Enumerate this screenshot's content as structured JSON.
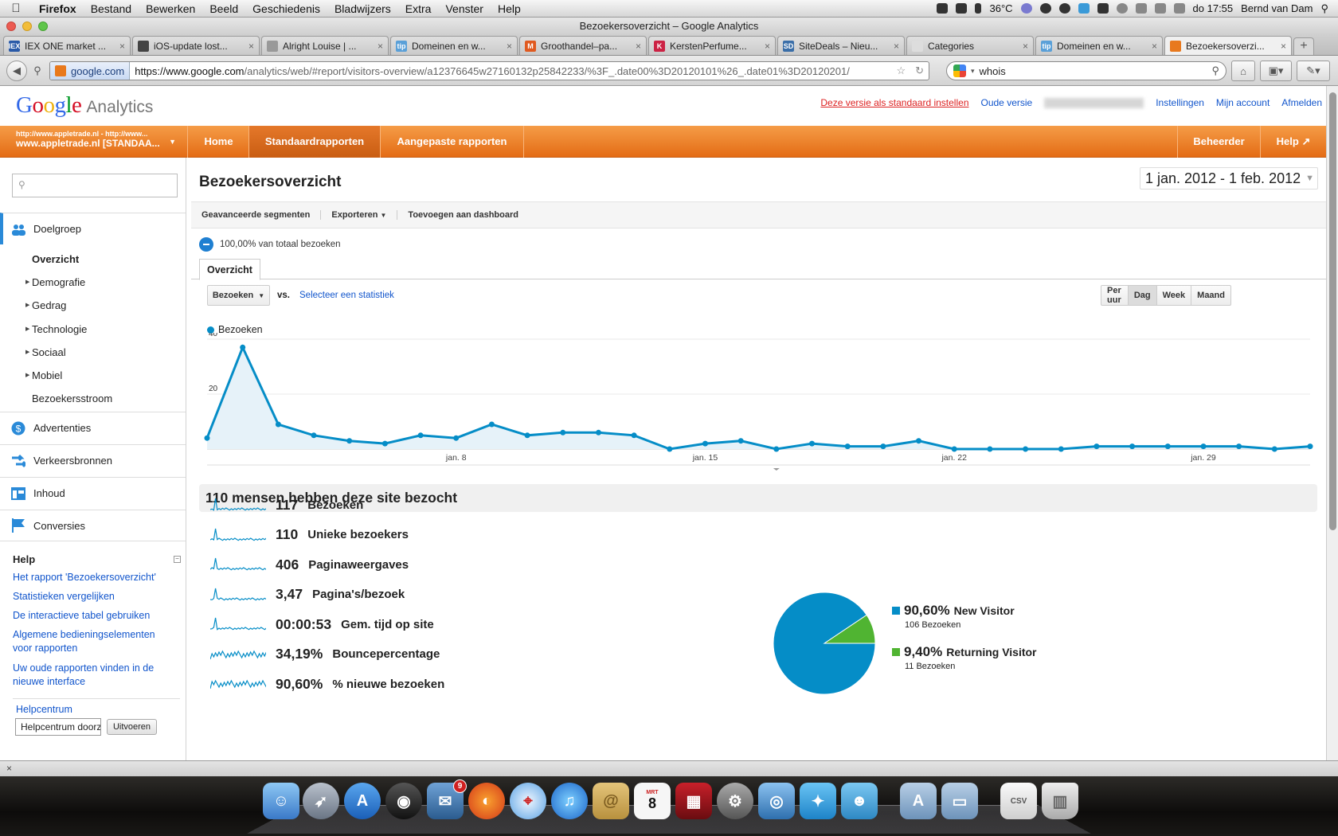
{
  "os_menubar": {
    "app": "Firefox",
    "menus": [
      "Bestand",
      "Bewerken",
      "Beeld",
      "Geschiedenis",
      "Bladwijzers",
      "Extra",
      "Venster",
      "Help"
    ],
    "temperature": "36°C",
    "clock": "do 17:55",
    "user": "Bernd van Dam"
  },
  "window": {
    "title": "Bezoekersoverzicht – Google Analytics"
  },
  "browser_tabs": [
    {
      "title": "IEX ONE market ...",
      "fav_color": "#2a5aa8",
      "fav_text": "IEX"
    },
    {
      "title": "iOS-update lost...",
      "fav_color": "#444444",
      "fav_text": ""
    },
    {
      "title": "Alright Louise | ...",
      "fav_color": "#999999",
      "fav_text": ""
    },
    {
      "title": "Domeinen en w...",
      "fav_color": "#5aa0d8",
      "fav_text": "tip"
    },
    {
      "title": "Groothandel–pa...",
      "fav_color": "#e05a20",
      "fav_text": "M"
    },
    {
      "title": "KerstenPerfume...",
      "fav_color": "#cc2244",
      "fav_text": "K"
    },
    {
      "title": "SiteDeals – Nieu...",
      "fav_color": "#3a6ea8",
      "fav_text": "SD"
    },
    {
      "title": "Categories",
      "fav_color": "#dddddd",
      "fav_text": ""
    },
    {
      "title": "Domeinen en w...",
      "fav_color": "#5aa0d8",
      "fav_text": "tip"
    },
    {
      "title": "Bezoekersoverzi...",
      "fav_color": "#e8791e",
      "fav_text": ""
    }
  ],
  "navbar": {
    "identity": "google.com",
    "url_host": "https://www.google.com",
    "url_path": "/analytics/web/#report/visitors-overview/a12376645w27160132p25842233/%3F_.date00%3D20120101%26_.date01%3D20120201/",
    "search_value": "whois"
  },
  "ga_header": {
    "logo_google": "Google",
    "logo_analytics": "Analytics",
    "links": {
      "set_default": "Deze versie als standaard instellen",
      "old_version": "Oude versie",
      "settings": "Instellingen",
      "my_account": "Mijn account",
      "sign_out": "Afmelden"
    }
  },
  "orange_nav": {
    "profile_url": "http://www.appletrade.nl - http://www...",
    "profile_name": "www.appletrade.nl [STANDAA...",
    "items": [
      "Home",
      "Standaardrapporten",
      "Aangepaste rapporten"
    ],
    "right_items": [
      "Beheerder",
      "Help"
    ]
  },
  "sidebar": {
    "sections": [
      {
        "label": "Doelgroep",
        "icon": "people-icon"
      },
      {
        "label": "Advertenties",
        "icon": "dollar-icon"
      },
      {
        "label": "Verkeersbronnen",
        "icon": "arrows-icon"
      },
      {
        "label": "Inhoud",
        "icon": "content-icon"
      },
      {
        "label": "Conversies",
        "icon": "flag-icon"
      }
    ],
    "subitems": [
      "Overzicht",
      "Demografie",
      "Gedrag",
      "Technologie",
      "Sociaal",
      "Mobiel",
      "Bezoekersstroom"
    ],
    "help_title": "Help",
    "help_links": [
      "Het rapport 'Bezoekersoverzicht'",
      "Statistieken vergelijken",
      "De interactieve tabel gebruiken",
      "Algemene bedieningselementen voor rapporten",
      "Uw oude rapporten vinden in de nieuwe interface"
    ],
    "helpcenter_label": "Helpcentrum",
    "helpcenter_input": "Helpcentrum doorz",
    "helpcenter_button": "Uitvoeren"
  },
  "main": {
    "title": "Bezoekersoverzicht",
    "date_range": "1 jan. 2012 - 1 feb. 2012",
    "toolbar": [
      "Geavanceerde segmenten",
      "Exporteren",
      "Toevoegen aan dashboard"
    ],
    "segment_text": "100,00% van totaal bezoeken",
    "tab": "Overzicht",
    "metric_select": "Bezoeken",
    "vs": "vs.",
    "select_metric": "Selecteer een statistiek",
    "granularity": [
      "Per uur",
      "Dag",
      "Week",
      "Maand"
    ],
    "granularity_active": "Dag",
    "summary": "110 mensen hebben deze site bezocht",
    "metrics": [
      {
        "value": "117",
        "label": "Bezoeken"
      },
      {
        "value": "110",
        "label": "Unieke bezoekers"
      },
      {
        "value": "406",
        "label": "Paginaweergaves"
      },
      {
        "value": "3,47",
        "label": "Pagina's/bezoek"
      },
      {
        "value": "00:00:53",
        "label": "Gem. tijd op site"
      },
      {
        "value": "34,19%",
        "label": "Bouncepercentage"
      },
      {
        "value": "90,60%",
        "label": "% nieuwe bezoeken"
      }
    ],
    "pie_legend": [
      {
        "pct": "90,60%",
        "label": "New Visitor",
        "sub": "106 Bezoeken",
        "color": "#058dc7"
      },
      {
        "pct": "9,40%",
        "label": "Returning Visitor",
        "sub": "11 Bezoeken",
        "color": "#50b432"
      }
    ]
  },
  "chart_data": [
    {
      "type": "area",
      "series": [
        {
          "name": "Bezoeken",
          "color": "#058dc7",
          "values": [
            4,
            37,
            9,
            5,
            3,
            2,
            5,
            4,
            9,
            5,
            6,
            6,
            5,
            0,
            2,
            3,
            0,
            2,
            1,
            1,
            3,
            0,
            0,
            0,
            0,
            1,
            1,
            1,
            1,
            1,
            0,
            1
          ]
        }
      ],
      "x_start": "2012-01-01",
      "x_ticks": [
        "jan. 8",
        "jan. 15",
        "jan. 22",
        "jan. 29"
      ],
      "y_ticks": [
        "20",
        "40"
      ],
      "ylim": [
        0,
        40
      ],
      "legend": "top-left"
    },
    {
      "type": "pie",
      "slices": [
        {
          "label": "New Visitor",
          "value": 90.6,
          "color": "#058dc7"
        },
        {
          "label": "Returning Visitor",
          "value": 9.4,
          "color": "#50b432"
        }
      ]
    }
  ],
  "statusbar": {
    "text": "×"
  },
  "dock": {
    "mail_badge": "9",
    "calendar_day": "8",
    "calendar_month": "MRT"
  }
}
